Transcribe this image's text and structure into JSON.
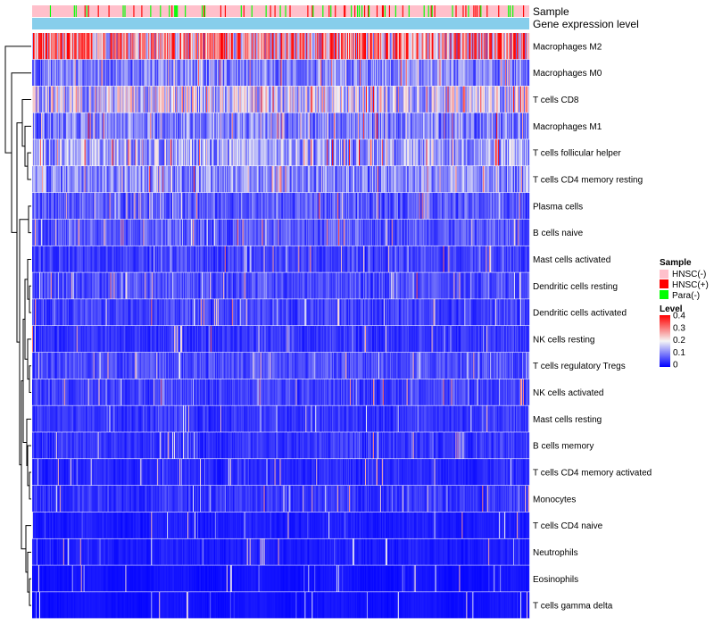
{
  "chart_data": {
    "type": "heatmap",
    "title": "",
    "annotation_tracks": [
      "Sample",
      "Gene expression level"
    ],
    "rows": [
      "Macrophages M2",
      "Macrophages M0",
      "T cells CD8",
      "Macrophages M1",
      "T cells follicular helper",
      "T cells CD4 memory resting",
      "Plasma cells",
      "B cells naive",
      "Mast cells activated",
      "Dendritic cells resting",
      "Dendritic cells activated",
      "NK cells resting",
      "T cells regulatory  Tregs",
      "NK cells activated",
      "Mast cells resting",
      "B cells memory",
      "T cells CD4 memory activated",
      "Monocytes",
      "T cells CD4 naive",
      "Neutrophils",
      "Eosinophils",
      "T cells gamma delta"
    ],
    "row_mean_level": [
      0.26,
      0.1,
      0.17,
      0.1,
      0.13,
      0.11,
      0.07,
      0.07,
      0.05,
      0.06,
      0.05,
      0.04,
      0.06,
      0.05,
      0.04,
      0.04,
      0.03,
      0.04,
      0.02,
      0.02,
      0.01,
      0.01
    ],
    "sample_groups": [
      "HNSC(-)",
      "HNSC(+)",
      "Para(-)"
    ],
    "sample_group_fractions": [
      0.85,
      0.08,
      0.07
    ],
    "n_samples": 560,
    "color_scale": {
      "min": 0,
      "max": 0.4,
      "low": "#0000ff",
      "mid": "#f5f5f5",
      "high": "#ff0000"
    }
  },
  "legend": {
    "sample": {
      "title": "Sample",
      "items": [
        {
          "label": "HNSC(-)",
          "color": "#ffc0cb"
        },
        {
          "label": "HNSC(+)",
          "color": "#ff0000"
        },
        {
          "label": "Para(-)",
          "color": "#00ff00"
        }
      ]
    },
    "level": {
      "title": "Level",
      "ticks": [
        "0.4",
        "0.3",
        "0.2",
        "0.1",
        "0"
      ],
      "tick_values": [
        0.4,
        0.3,
        0.2,
        0.1,
        0
      ]
    }
  },
  "colors": {
    "expression_track": "#87ceeb",
    "dendrogram": "#000000"
  }
}
